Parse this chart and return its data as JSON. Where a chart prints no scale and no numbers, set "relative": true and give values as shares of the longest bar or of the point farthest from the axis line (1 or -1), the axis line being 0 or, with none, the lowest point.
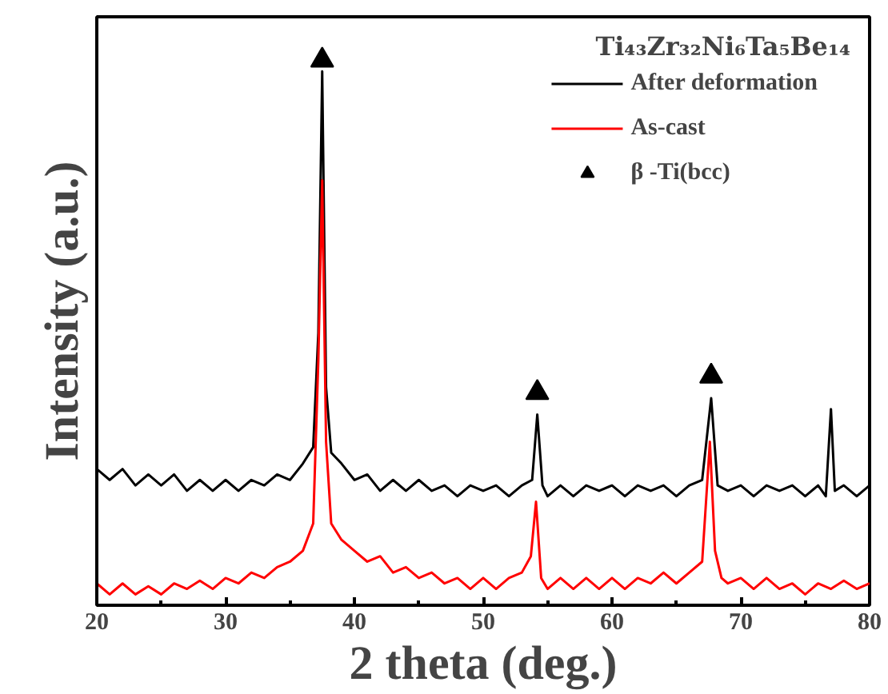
{
  "chart_data": {
    "type": "line",
    "title": "Ti₄₃Zr₃₂Ni₆Ta₅Be₁₄",
    "xlabel": "2 theta (deg.)",
    "ylabel": "Intensity (a.u.)",
    "relative": true,
    "xlim": [
      20,
      80
    ],
    "xticks": [
      20,
      30,
      40,
      50,
      60,
      70,
      80
    ],
    "grid": false,
    "legend": "top right",
    "series": [
      {
        "name": "After deformation",
        "color": "#000000",
        "x": [
          20,
          21,
          22,
          23,
          24,
          25,
          26,
          27,
          28,
          29,
          30,
          31,
          32,
          33,
          34,
          35,
          36,
          36.8,
          37.2,
          37.5,
          37.8,
          38.2,
          39,
          40,
          41,
          42,
          43,
          44,
          45,
          46,
          47,
          48,
          49,
          50,
          51,
          52,
          53,
          53.8,
          54.2,
          54.6,
          55,
          56,
          57,
          58,
          59,
          60,
          61,
          62,
          63,
          64,
          65,
          66,
          67,
          67.7,
          68.2,
          69,
          70,
          71,
          72,
          73,
          74,
          75,
          76,
          76.6,
          77,
          77.3,
          78,
          79,
          80
        ],
        "values": [
          0.25,
          0.23,
          0.25,
          0.22,
          0.24,
          0.22,
          0.24,
          0.21,
          0.23,
          0.21,
          0.23,
          0.21,
          0.23,
          0.22,
          0.24,
          0.23,
          0.26,
          0.29,
          0.5,
          0.98,
          0.4,
          0.28,
          0.26,
          0.23,
          0.24,
          0.21,
          0.23,
          0.21,
          0.23,
          0.21,
          0.22,
          0.2,
          0.22,
          0.21,
          0.22,
          0.2,
          0.22,
          0.23,
          0.35,
          0.22,
          0.2,
          0.22,
          0.2,
          0.22,
          0.21,
          0.22,
          0.2,
          0.22,
          0.21,
          0.22,
          0.2,
          0.22,
          0.23,
          0.38,
          0.22,
          0.21,
          0.22,
          0.2,
          0.22,
          0.21,
          0.22,
          0.2,
          0.22,
          0.2,
          0.36,
          0.21,
          0.22,
          0.2,
          0.22
        ]
      },
      {
        "name": "As-cast",
        "color": "#ff0000",
        "x": [
          20,
          21,
          22,
          23,
          24,
          25,
          26,
          27,
          28,
          29,
          30,
          31,
          32,
          33,
          34,
          35,
          36,
          36.8,
          37.2,
          37.5,
          37.8,
          38.2,
          39,
          40,
          41,
          42,
          43,
          44,
          45,
          46,
          47,
          48,
          49,
          50,
          51,
          52,
          53,
          53.7,
          54.1,
          54.5,
          55,
          56,
          57,
          58,
          59,
          60,
          61,
          62,
          63,
          64,
          65,
          66,
          67,
          67.6,
          68,
          68.5,
          69,
          70,
          71,
          72,
          73,
          74,
          75,
          76,
          77,
          78,
          79,
          80
        ],
        "values": [
          0.04,
          0.02,
          0.04,
          0.02,
          0.035,
          0.02,
          0.04,
          0.03,
          0.045,
          0.03,
          0.05,
          0.04,
          0.06,
          0.05,
          0.07,
          0.08,
          0.1,
          0.15,
          0.45,
          0.78,
          0.3,
          0.15,
          0.12,
          0.1,
          0.08,
          0.09,
          0.06,
          0.07,
          0.05,
          0.06,
          0.04,
          0.05,
          0.03,
          0.05,
          0.03,
          0.05,
          0.06,
          0.09,
          0.19,
          0.05,
          0.03,
          0.05,
          0.03,
          0.05,
          0.03,
          0.05,
          0.03,
          0.05,
          0.04,
          0.06,
          0.04,
          0.06,
          0.08,
          0.3,
          0.1,
          0.05,
          0.04,
          0.05,
          0.03,
          0.05,
          0.03,
          0.04,
          0.02,
          0.04,
          0.03,
          0.045,
          0.03,
          0.04
        ]
      },
      {
        "name": "β -Ti(bcc)",
        "type": "scatter",
        "marker": "triangle",
        "color": "#000000",
        "x": [
          37.5,
          54.2,
          67.7
        ],
        "values": [
          1.0,
          0.39,
          0.42
        ]
      }
    ]
  }
}
